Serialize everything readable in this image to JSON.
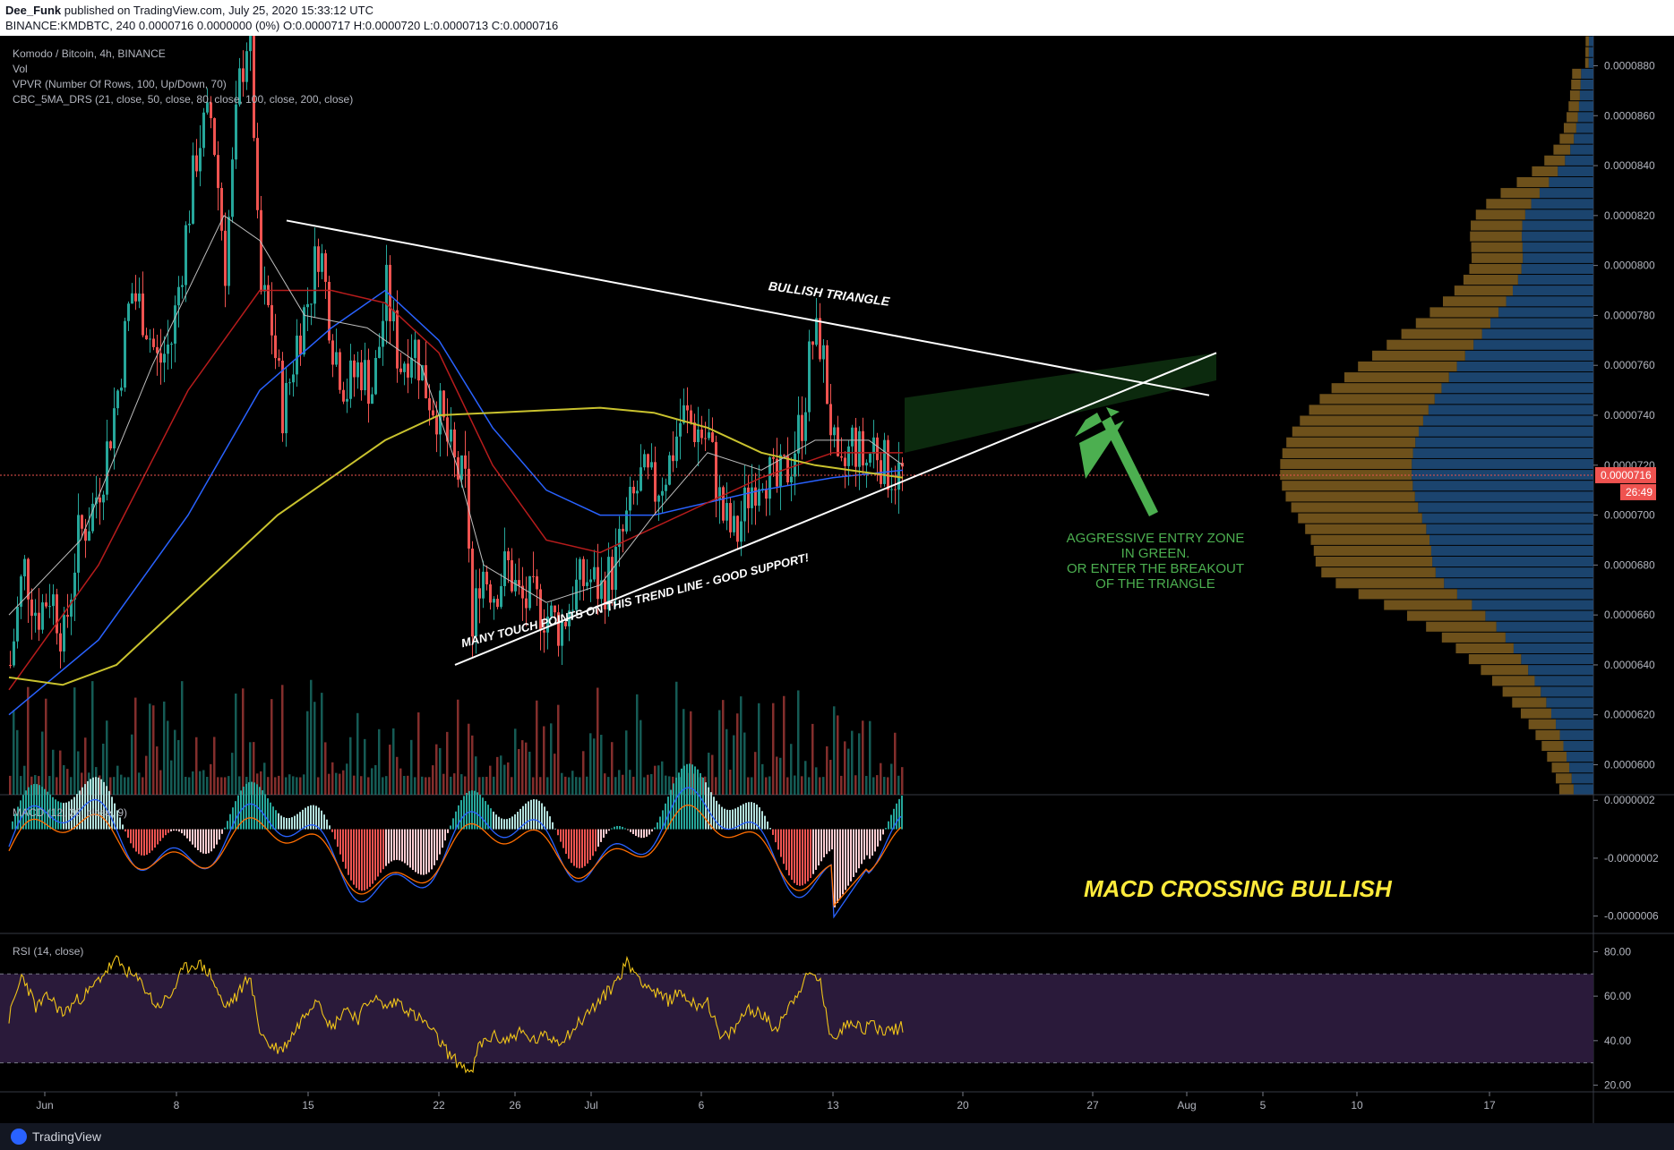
{
  "header": {
    "author": "Dee_Funk",
    "published": "published on TradingView.com, July 25, 2020 15:33:12 UTC",
    "ohlc_line": "BINANCE:KMDBTC, 240 0.0000716 0.0000000 (0%) O:0.0000717 H:0.0000720 L:0.0000713 C:0.0000716"
  },
  "legend": {
    "symbol": "Komodo / Bitcoin, 4h, BINANCE",
    "vol": "Vol",
    "vpvr": "VPVR (Number Of Rows, 100, Up/Down, 70)",
    "ma": "CBC_5MA_DRS (21, close, 50, close, 80, close, 100, close, 200, close)",
    "macd": "MACD (12, 26, close, 9)",
    "rsi": "RSI (14, close)"
  },
  "footer": {
    "brand": "TradingView"
  },
  "colors": {
    "up": "#26a69a",
    "down": "#ef5350",
    "ma200": "#c9c22e",
    "ma100": "#2962ff",
    "ma80": "#b71c1c",
    "ma50": "#880e4f",
    "ma21": "#bdbdbd",
    "annotation_green": "#4caf50",
    "annotation_yellow": "#ffeb3b",
    "price_tag": "#ef5350",
    "rsi_band": "#2a1a3a"
  },
  "chart_data": [
    {
      "type": "candlestick",
      "title": "Komodo / Bitcoin, 4h, BINANCE",
      "x_ticks": [
        "Jun",
        "8",
        "15",
        "22",
        "26",
        "Jul",
        "6",
        "13",
        "20",
        "27",
        "Aug",
        "5",
        "10",
        "17"
      ],
      "y_ticks": [
        "0.0000880",
        "0.0000860",
        "0.0000840",
        "0.0000820",
        "0.0000800",
        "0.0000780",
        "0.0000760",
        "0.0000740",
        "0.0000720",
        "0.0000700",
        "0.0000680",
        "0.0000660",
        "0.0000640",
        "0.0000620",
        "0.0000600"
      ],
      "ylim": [
        5.88e-05,
        8.92e-05
      ],
      "last_price": "0.0000716",
      "countdown": "26:49",
      "close_path": [
        [
          0,
          6.4e-05
        ],
        [
          15,
          6.8e-05
        ],
        [
          30,
          6.6e-05
        ],
        [
          45,
          6.7e-05
        ],
        [
          60,
          6.5e-05
        ],
        [
          75,
          6.9e-05
        ],
        [
          90,
          7e-05
        ],
        [
          105,
          7.2e-05
        ],
        [
          120,
          7.5e-05
        ],
        [
          135,
          7.9e-05
        ],
        [
          150,
          7.8e-05
        ],
        [
          165,
          7.6e-05
        ],
        [
          180,
          7.7e-05
        ],
        [
          195,
          8.1e-05
        ],
        [
          210,
          8.5e-05
        ],
        [
          225,
          8.6e-05
        ],
        [
          240,
          8e-05
        ],
        [
          255,
          8.7e-05
        ],
        [
          268,
          9e-05
        ],
        [
          278,
          7.9e-05
        ],
        [
          290,
          7.8e-05
        ],
        [
          305,
          7.4e-05
        ],
        [
          320,
          7.7e-05
        ],
        [
          335,
          7.9e-05
        ],
        [
          345,
          8.1e-05
        ],
        [
          360,
          7.7e-05
        ],
        [
          375,
          7.5e-05
        ],
        [
          390,
          7.6e-05
        ],
        [
          405,
          7.5e-05
        ],
        [
          420,
          7.9e-05
        ],
        [
          435,
          7.6e-05
        ],
        [
          450,
          7.7e-05
        ],
        [
          465,
          7.5e-05
        ],
        [
          480,
          7.4e-05
        ],
        [
          495,
          7.2e-05
        ],
        [
          510,
          7.1e-05
        ],
        [
          516,
          6.5e-05
        ],
        [
          525,
          6.8e-05
        ],
        [
          540,
          6.7e-05
        ],
        [
          555,
          6.8e-05
        ],
        [
          570,
          6.65e-05
        ],
        [
          585,
          6.65e-05
        ],
        [
          600,
          6.6e-05
        ],
        [
          615,
          6.55e-05
        ],
        [
          630,
          6.7e-05
        ],
        [
          645,
          6.75e-05
        ],
        [
          660,
          6.7e-05
        ],
        [
          675,
          6.8e-05
        ],
        [
          690,
          7e-05
        ],
        [
          705,
          7.15e-05
        ],
        [
          720,
          7.1e-05
        ],
        [
          735,
          7.2e-05
        ],
        [
          750,
          7.4e-05
        ],
        [
          765,
          7.35e-05
        ],
        [
          780,
          7.3e-05
        ],
        [
          795,
          7e-05
        ],
        [
          810,
          6.9e-05
        ],
        [
          825,
          7.1e-05
        ],
        [
          840,
          7.2e-05
        ],
        [
          855,
          7.1e-05
        ],
        [
          870,
          7.2e-05
        ],
        [
          885,
          7.4e-05
        ],
        [
          895,
          7.7e-05
        ],
        [
          905,
          7.7e-05
        ],
        [
          915,
          7.4e-05
        ],
        [
          925,
          7.1e-05
        ],
        [
          940,
          7.3e-05
        ],
        [
          955,
          7.2e-05
        ],
        [
          965,
          7.3e-05
        ],
        [
          975,
          7.2e-05
        ],
        [
          985,
          7.17e-05
        ],
        [
          998,
          7.16e-05
        ]
      ],
      "ma200": [
        [
          0,
          6.35e-05
        ],
        [
          60,
          6.32e-05
        ],
        [
          120,
          6.4e-05
        ],
        [
          180,
          6.6e-05
        ],
        [
          240,
          6.8e-05
        ],
        [
          300,
          7e-05
        ],
        [
          360,
          7.15e-05
        ],
        [
          420,
          7.3e-05
        ],
        [
          480,
          7.4e-05
        ],
        [
          540,
          7.41e-05
        ],
        [
          600,
          7.42e-05
        ],
        [
          660,
          7.43e-05
        ],
        [
          720,
          7.41e-05
        ],
        [
          780,
          7.35e-05
        ],
        [
          840,
          7.25e-05
        ],
        [
          900,
          7.2e-05
        ],
        [
          998,
          7.15e-05
        ]
      ],
      "ma100": [
        [
          0,
          6.2e-05
        ],
        [
          100,
          6.5e-05
        ],
        [
          200,
          7e-05
        ],
        [
          280,
          7.5e-05
        ],
        [
          360,
          7.75e-05
        ],
        [
          420,
          7.9e-05
        ],
        [
          480,
          7.7e-05
        ],
        [
          540,
          7.35e-05
        ],
        [
          600,
          7.1e-05
        ],
        [
          660,
          7e-05
        ],
        [
          720,
          7e-05
        ],
        [
          780,
          7.05e-05
        ],
        [
          840,
          7.1e-05
        ],
        [
          920,
          7.15e-05
        ],
        [
          998,
          7.18e-05
        ]
      ],
      "ma80": [
        [
          0,
          6.3e-05
        ],
        [
          100,
          6.8e-05
        ],
        [
          200,
          7.5e-05
        ],
        [
          280,
          7.9e-05
        ],
        [
          360,
          7.9e-05
        ],
        [
          420,
          7.85e-05
        ],
        [
          480,
          7.65e-05
        ],
        [
          540,
          7.2e-05
        ],
        [
          600,
          6.9e-05
        ],
        [
          660,
          6.85e-05
        ],
        [
          720,
          6.95e-05
        ],
        [
          780,
          7.05e-05
        ],
        [
          840,
          7.15e-05
        ],
        [
          920,
          7.25e-05
        ],
        [
          998,
          7.25e-05
        ]
      ],
      "ma21": [
        [
          0,
          6.6e-05
        ],
        [
          80,
          6.9e-05
        ],
        [
          160,
          7.6e-05
        ],
        [
          240,
          8.2e-05
        ],
        [
          280,
          8.1e-05
        ],
        [
          330,
          7.8e-05
        ],
        [
          400,
          7.75e-05
        ],
        [
          460,
          7.6e-05
        ],
        [
          500,
          7.2e-05
        ],
        [
          530,
          6.8e-05
        ],
        [
          600,
          6.65e-05
        ],
        [
          660,
          6.72e-05
        ],
        [
          720,
          7e-05
        ],
        [
          780,
          7.25e-05
        ],
        [
          840,
          7.18e-05
        ],
        [
          900,
          7.3e-05
        ],
        [
          960,
          7.3e-05
        ],
        [
          998,
          7.2e-05
        ]
      ],
      "annotations": {
        "resistance_label": "BULLISH TRIANGLE",
        "support_label": "MANY TOUCH POINTS ON THIS TREND LINE - GOOD SUPPORT!",
        "entry_note": [
          "AGGRESSIVE ENTRY ZONE",
          "IN GREEN.",
          "OR ENTER THE BREAKOUT",
          "OF THE TRIANGLE"
        ],
        "macd_note": "MACD CROSSING BULLISH"
      },
      "resistance_line": [
        [
          320,
          8.18e-05
        ],
        [
          1350,
          7.48e-05
        ]
      ],
      "support_line": [
        [
          508,
          6.4e-05
        ],
        [
          1358,
          7.65e-05
        ]
      ]
    },
    {
      "type": "bar",
      "title": "Vol",
      "description_series": "volume histogram, relative heights",
      "values_sample": [
        0.4,
        0.6,
        0.3,
        0.8,
        0.5,
        0.4,
        0.9,
        0.3,
        0.6,
        0.5,
        0.7,
        0.4,
        0.6,
        1.0,
        0.5,
        0.7,
        0.5,
        0.4,
        0.6,
        0.3,
        0.5,
        0.8,
        0.6,
        0.7,
        0.4,
        0.5,
        0.9,
        0.4,
        0.6,
        0.5
      ]
    },
    {
      "type": "bar",
      "title": "MACD (12, 26, close, 9)",
      "y_ticks": [
        "0.0000002",
        "-0.0000002",
        "-0.0000006"
      ],
      "ylim": [
        -7.2e-07,
        2.2e-07
      ]
    },
    {
      "type": "line",
      "title": "RSI (14, close)",
      "y_ticks": [
        "80.00",
        "60.00",
        "40.00",
        "20.00"
      ],
      "ylim": [
        17,
        87
      ],
      "bands": [
        30,
        70
      ],
      "values_path": [
        [
          0,
          50
        ],
        [
          15,
          70
        ],
        [
          30,
          55
        ],
        [
          45,
          60
        ],
        [
          60,
          52
        ],
        [
          75,
          58
        ],
        [
          90,
          62
        ],
        [
          105,
          70
        ],
        [
          120,
          76
        ],
        [
          135,
          70
        ],
        [
          150,
          65
        ],
        [
          165,
          55
        ],
        [
          180,
          60
        ],
        [
          195,
          72
        ],
        [
          210,
          75
        ],
        [
          225,
          70
        ],
        [
          240,
          55
        ],
        [
          255,
          60
        ],
        [
          268,
          70
        ],
        [
          280,
          45
        ],
        [
          290,
          38
        ],
        [
          305,
          36
        ],
        [
          320,
          45
        ],
        [
          335,
          55
        ],
        [
          345,
          60
        ],
        [
          360,
          45
        ],
        [
          375,
          55
        ],
        [
          390,
          50
        ],
        [
          405,
          60
        ],
        [
          420,
          55
        ],
        [
          435,
          58
        ],
        [
          450,
          52
        ],
        [
          465,
          48
        ],
        [
          480,
          40
        ],
        [
          495,
          32
        ],
        [
          510,
          28
        ],
        [
          516,
          24
        ],
        [
          525,
          38
        ],
        [
          540,
          42
        ],
        [
          555,
          40
        ],
        [
          570,
          44
        ],
        [
          585,
          40
        ],
        [
          600,
          42
        ],
        [
          615,
          40
        ],
        [
          630,
          45
        ],
        [
          645,
          52
        ],
        [
          660,
          58
        ],
        [
          675,
          65
        ],
        [
          690,
          75
        ],
        [
          705,
          68
        ],
        [
          720,
          62
        ],
        [
          735,
          58
        ],
        [
          750,
          62
        ],
        [
          765,
          56
        ],
        [
          780,
          58
        ],
        [
          795,
          40
        ],
        [
          810,
          45
        ],
        [
          825,
          55
        ],
        [
          840,
          52
        ],
        [
          855,
          45
        ],
        [
          870,
          55
        ],
        [
          885,
          65
        ],
        [
          895,
          70
        ],
        [
          905,
          68
        ],
        [
          915,
          45
        ],
        [
          925,
          42
        ],
        [
          940,
          50
        ],
        [
          955,
          45
        ],
        [
          965,
          48
        ],
        [
          975,
          44
        ],
        [
          985,
          45
        ],
        [
          998,
          46
        ]
      ]
    }
  ],
  "x_tick_positions_note": "tick labels at bottom time axis"
}
